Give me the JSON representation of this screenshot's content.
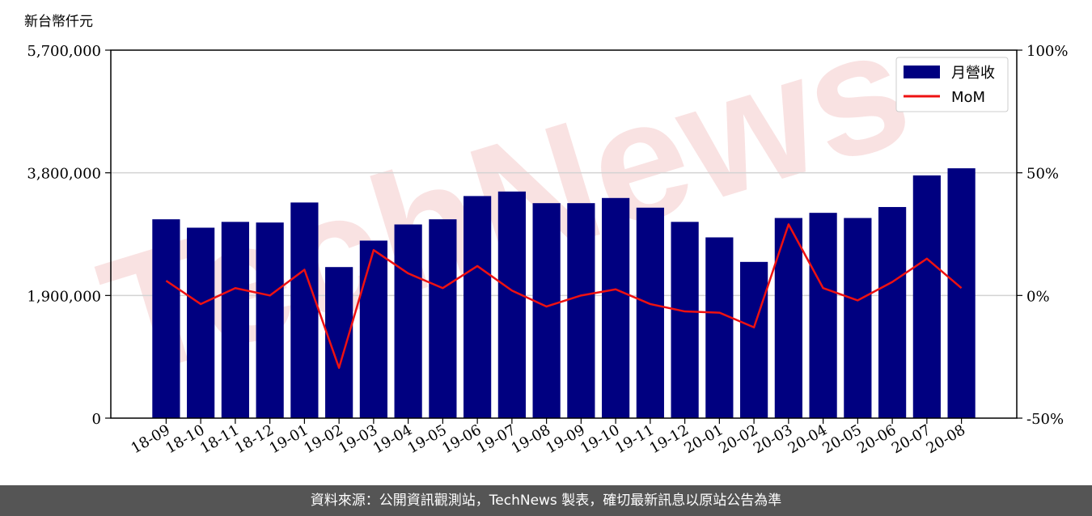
{
  "unit_label": "新台幣仟元",
  "footer_text": "資料來源：公開資訊觀測站，TechNews 製表，確切最新訊息以原站公告為準",
  "watermark": "TechNews",
  "colors": {
    "bar": "#000080",
    "line": "#ee1111",
    "grid": "#d3d3d3",
    "footer_bg": "#555555"
  },
  "chart_data": {
    "type": "bar",
    "categories": [
      "18-09",
      "18-10",
      "18-11",
      "18-12",
      "19-01",
      "19-02",
      "19-03",
      "19-04",
      "19-05",
      "19-06",
      "19-07",
      "19-08",
      "19-09",
      "19-10",
      "19-11",
      "19-12",
      "20-01",
      "20-02",
      "20-03",
      "20-04",
      "20-05",
      "20-06",
      "20-07",
      "20-08"
    ],
    "series": [
      {
        "name": "月營收",
        "type": "bar",
        "axis": "left",
        "values": [
          3080000,
          2950000,
          3040000,
          3030000,
          3340000,
          2340000,
          2750000,
          3000000,
          3080000,
          3440000,
          3510000,
          3330000,
          3330000,
          3410000,
          3260000,
          3040000,
          2800000,
          2420000,
          3100000,
          3180000,
          3100000,
          3270000,
          3760000,
          3870000
        ]
      },
      {
        "name": "MoM",
        "type": "line",
        "axis": "right",
        "values": [
          6,
          -3.5,
          3,
          0,
          10.5,
          -29.5,
          18.5,
          9,
          3,
          12,
          2,
          -4.5,
          0,
          2.5,
          -3.5,
          -6.5,
          -7,
          -13,
          29,
          3,
          -2,
          5.5,
          15,
          3
        ]
      }
    ],
    "yleft": {
      "ticks": [
        "5,700,000",
        "3,800,000",
        "1,900,000",
        "0"
      ],
      "tick_values": [
        5700000,
        3800000,
        1900000,
        0
      ],
      "ylim": [
        0,
        5700000
      ]
    },
    "yright": {
      "ticks": [
        "100%",
        "50%",
        "0%",
        "-50%"
      ],
      "tick_values": [
        100,
        50,
        0,
        -50
      ],
      "ylim": [
        -50,
        100
      ]
    },
    "grid": "horizontal",
    "legend_position": "top-right"
  }
}
